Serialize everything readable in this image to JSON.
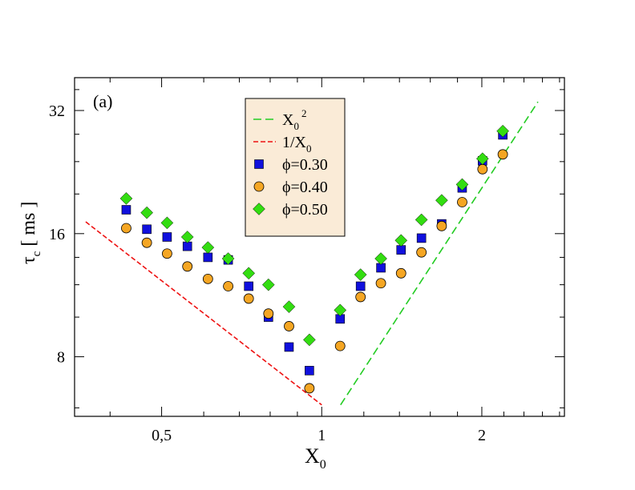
{
  "chart_data": {
    "type": "scatter",
    "panel_label": "(a)",
    "xlabel": {
      "main": "X",
      "sub": "0"
    },
    "ylabel": {
      "main": "τ",
      "sub": "c",
      "rest": " [ ms ]"
    },
    "x_scale": "log",
    "y_scale": "log",
    "xlim": [
      0.343,
      2.86
    ],
    "ylim": [
      5.72,
      38.5
    ],
    "x_ticks": [
      {
        "value": 0.5,
        "label": "0,5"
      },
      {
        "value": 1,
        "label": "1"
      },
      {
        "value": 2,
        "label": "2"
      }
    ],
    "x_minor_ticks": [
      0.4,
      0.6,
      0.7,
      0.8,
      0.9,
      1.2,
      1.4,
      1.6,
      1.8,
      2.2,
      2.4,
      2.6,
      2.8
    ],
    "y_ticks": [
      {
        "value": 8,
        "label": "8"
      },
      {
        "value": 16,
        "label": "16"
      },
      {
        "value": 32,
        "label": "32"
      }
    ],
    "y_minor_ticks": [
      6,
      10,
      12,
      14,
      20,
      24,
      28,
      36
    ],
    "legend": {
      "position": "top-center",
      "background": "#faebd7",
      "entries": [
        {
          "id": "x2",
          "main": "X",
          "sub": "0",
          "sup": "2",
          "kind": "line",
          "color": "#22cc22",
          "dash": "10,5"
        },
        {
          "id": "inv",
          "main": "1/X",
          "sub": "0",
          "sup": "",
          "kind": "line",
          "color": "#ee1111",
          "dash": "6,3"
        },
        {
          "id": "p030",
          "main": "ϕ=0.30",
          "kind": "marker",
          "marker": "square",
          "color": "#1010dd"
        },
        {
          "id": "p040",
          "main": "ϕ=0.40",
          "kind": "marker",
          "marker": "circle",
          "color": "#f5a623"
        },
        {
          "id": "p050",
          "main": "ϕ=0.50",
          "kind": "marker",
          "marker": "diamond",
          "color": "#33dd11"
        }
      ]
    },
    "reference_lines": [
      {
        "name": "1/X0",
        "color": "#ee1111",
        "dash": "6,3",
        "points": [
          [
            0.36,
            17.1
          ],
          [
            1.0,
            6.1
          ]
        ]
      },
      {
        "name": "X0^2",
        "color": "#22cc22",
        "dash": "10,5",
        "points": [
          [
            1.085,
            6.1
          ],
          [
            2.55,
            33.6
          ]
        ]
      }
    ],
    "series": [
      {
        "name": "ϕ=0.30",
        "marker": "square",
        "color": "#1010dd",
        "points": [
          [
            0.429,
            18.3
          ],
          [
            0.469,
            16.4
          ],
          [
            0.512,
            15.7
          ],
          [
            0.559,
            14.9
          ],
          [
            0.611,
            14.0
          ],
          [
            0.667,
            13.8
          ],
          [
            0.729,
            11.9
          ],
          [
            0.794,
            10.0
          ],
          [
            0.868,
            8.45
          ],
          [
            0.948,
            7.4
          ],
          [
            1.083,
            9.9
          ],
          [
            1.183,
            11.9
          ],
          [
            1.292,
            13.2
          ],
          [
            1.41,
            14.6
          ],
          [
            1.54,
            15.6
          ],
          [
            1.681,
            16.9
          ],
          [
            1.837,
            20.7
          ],
          [
            2.006,
            24.1
          ],
          [
            2.19,
            27.9
          ]
        ]
      },
      {
        "name": "ϕ=0.40",
        "marker": "circle",
        "color": "#f5a623",
        "points": [
          [
            0.429,
            16.5
          ],
          [
            0.469,
            15.2
          ],
          [
            0.512,
            14.3
          ],
          [
            0.559,
            13.3
          ],
          [
            0.611,
            12.4
          ],
          [
            0.667,
            11.9
          ],
          [
            0.729,
            11.1
          ],
          [
            0.794,
            10.2
          ],
          [
            0.868,
            9.5
          ],
          [
            0.948,
            6.7
          ],
          [
            1.083,
            8.5
          ],
          [
            1.183,
            11.2
          ],
          [
            1.292,
            12.1
          ],
          [
            1.41,
            12.8
          ],
          [
            1.54,
            14.4
          ],
          [
            1.681,
            16.7
          ],
          [
            1.837,
            19.1
          ],
          [
            2.006,
            23.0
          ],
          [
            2.19,
            25.0
          ]
        ]
      },
      {
        "name": "ϕ=0.50",
        "marker": "diamond",
        "color": "#33dd11",
        "points": [
          [
            0.429,
            19.5
          ],
          [
            0.469,
            18.0
          ],
          [
            0.512,
            17.0
          ],
          [
            0.559,
            15.7
          ],
          [
            0.611,
            14.8
          ],
          [
            0.667,
            13.9
          ],
          [
            0.729,
            12.8
          ],
          [
            0.794,
            12.0
          ],
          [
            0.868,
            10.6
          ],
          [
            0.948,
            8.8
          ],
          [
            1.083,
            10.4
          ],
          [
            1.183,
            12.7
          ],
          [
            1.292,
            13.9
          ],
          [
            1.41,
            15.4
          ],
          [
            1.54,
            17.3
          ],
          [
            1.681,
            19.3
          ],
          [
            1.837,
            21.1
          ],
          [
            2.006,
            24.4
          ],
          [
            2.19,
            28.5
          ]
        ]
      }
    ]
  }
}
